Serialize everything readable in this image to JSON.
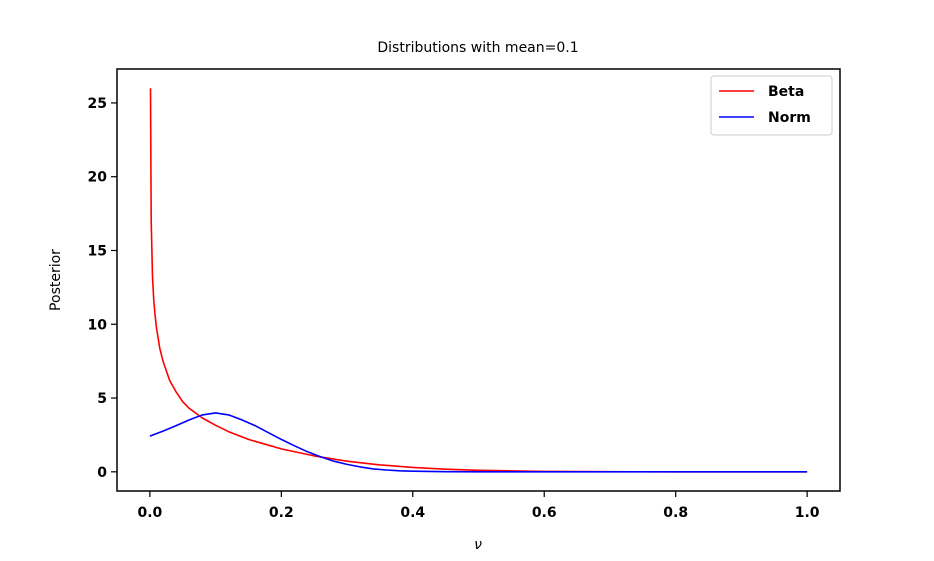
{
  "chart_data": {
    "type": "line",
    "title": "Distributions with mean=0.1",
    "xlabel": "ν",
    "ylabel": "Posterior",
    "xlim": [
      -0.05,
      1.05
    ],
    "ylim": [
      -1.3,
      27.3
    ],
    "x_ticks": [
      0.0,
      0.2,
      0.4,
      0.6,
      0.8,
      1.0
    ],
    "x_tick_labels": [
      "0.0",
      "0.2",
      "0.4",
      "0.6",
      "0.8",
      "1.0"
    ],
    "y_ticks": [
      0,
      5,
      10,
      15,
      20,
      25
    ],
    "y_tick_labels": [
      "0",
      "5",
      "10",
      "15",
      "20",
      "25"
    ],
    "grid": false,
    "legend_position": "top-right",
    "series": [
      {
        "name": "Beta",
        "color": "#ff0000",
        "x": [
          0.001,
          0.002,
          0.004,
          0.006,
          0.008,
          0.01,
          0.015,
          0.02,
          0.03,
          0.04,
          0.05,
          0.06,
          0.08,
          0.1,
          0.12,
          0.15,
          0.2,
          0.25,
          0.3,
          0.35,
          0.4,
          0.45,
          0.5,
          0.6,
          0.7,
          0.8,
          0.9,
          1.0
        ],
        "y": [
          26.0,
          17.0,
          13.2,
          11.6,
          10.6,
          9.8,
          8.4,
          7.5,
          6.2,
          5.4,
          4.75,
          4.3,
          3.65,
          3.15,
          2.72,
          2.2,
          1.55,
          1.08,
          0.72,
          0.47,
          0.3,
          0.18,
          0.1,
          0.03,
          0.01,
          0.0,
          0.0,
          0.0
        ]
      },
      {
        "name": "Norm",
        "color": "#0000ff",
        "x": [
          0.0,
          0.02,
          0.04,
          0.06,
          0.08,
          0.1,
          0.12,
          0.14,
          0.16,
          0.18,
          0.2,
          0.22,
          0.24,
          0.26,
          0.28,
          0.3,
          0.32,
          0.34,
          0.36,
          0.38,
          0.4,
          0.45,
          0.5,
          0.6,
          0.7,
          0.8,
          0.9,
          1.0
        ],
        "y": [
          2.42,
          2.76,
          3.13,
          3.52,
          3.86,
          3.99,
          3.86,
          3.52,
          3.13,
          2.66,
          2.2,
          1.76,
          1.36,
          1.01,
          0.72,
          0.5,
          0.33,
          0.2,
          0.12,
          0.07,
          0.04,
          0.01,
          0.0,
          0.0,
          0.0,
          0.0,
          0.0,
          0.0
        ]
      }
    ]
  }
}
